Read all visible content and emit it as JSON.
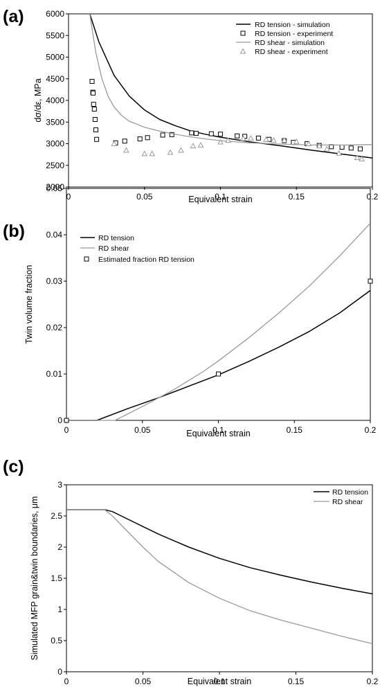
{
  "chart_data": [
    {
      "type": "line",
      "panel_label": "(a)",
      "xlabel": "Equivalent strain",
      "ylabel": "dσ/dε, MPa",
      "xlim": [
        0,
        0.2
      ],
      "ylim": [
        2000,
        6000
      ],
      "xticks": [
        "0",
        "0.05",
        "0.1",
        "0.15",
        "0.2"
      ],
      "yticks": [
        "2000",
        "2500",
        "3000",
        "3500",
        "4000",
        "4500",
        "5000",
        "5500",
        "6000"
      ],
      "grid": false,
      "legend_position": "top-right",
      "series": [
        {
          "name": "RD tension - simulation",
          "style": "line",
          "color": "#000000",
          "x": [
            0.014,
            0.02,
            0.03,
            0.04,
            0.05,
            0.06,
            0.07,
            0.08,
            0.09,
            0.1,
            0.12,
            0.14,
            0.16,
            0.18,
            0.2
          ],
          "y": [
            6000,
            5350,
            4580,
            4100,
            3780,
            3560,
            3420,
            3300,
            3220,
            3150,
            3040,
            2950,
            2850,
            2760,
            2670
          ]
        },
        {
          "name": "RD tension - experiment",
          "style": "square",
          "color": "#000000",
          "x": [
            0.0155,
            0.016,
            0.0162,
            0.0165,
            0.017,
            0.0175,
            0.018,
            0.0185,
            0.031,
            0.037,
            0.047,
            0.052,
            0.062,
            0.068,
            0.081,
            0.084,
            0.094,
            0.1,
            0.111,
            0.116,
            0.125,
            0.132,
            0.142,
            0.148,
            0.157,
            0.165,
            0.173,
            0.18,
            0.186,
            0.192
          ],
          "y": [
            4440,
            4190,
            4170,
            3910,
            3800,
            3560,
            3320,
            3100,
            3020,
            3060,
            3110,
            3140,
            3200,
            3210,
            3250,
            3240,
            3230,
            3220,
            3180,
            3170,
            3130,
            3100,
            3070,
            3030,
            3000,
            2960,
            2930,
            2920,
            2900,
            2880
          ]
        },
        {
          "name": "RD shear - simulation",
          "style": "line",
          "color": "#999999",
          "x": [
            0.014,
            0.018,
            0.022,
            0.026,
            0.03,
            0.035,
            0.04,
            0.05,
            0.06,
            0.07,
            0.08,
            0.09,
            0.1,
            0.12,
            0.14,
            0.16,
            0.18,
            0.2
          ],
          "y": [
            6000,
            5100,
            4500,
            4100,
            3850,
            3650,
            3520,
            3380,
            3290,
            3220,
            3160,
            3110,
            3070,
            3020,
            2990,
            2970,
            2970,
            2980
          ]
        },
        {
          "name": "RD shear - experiment",
          "style": "triangle",
          "color": "#999999",
          "x": [
            0.03,
            0.038,
            0.05,
            0.055,
            0.067,
            0.074,
            0.082,
            0.087,
            0.1,
            0.105,
            0.115,
            0.12,
            0.13,
            0.135,
            0.142,
            0.15,
            0.158,
            0.165,
            0.17,
            0.178,
            0.19,
            0.193
          ],
          "y": [
            3000,
            2850,
            2770,
            2770,
            2800,
            2850,
            2950,
            2970,
            3040,
            3080,
            3120,
            3130,
            3100,
            3080,
            3080,
            3050,
            3000,
            2950,
            2880,
            2780,
            2680,
            2650
          ]
        }
      ]
    },
    {
      "type": "line",
      "panel_label": "(b)",
      "xlabel": "Equivalent strain",
      "ylabel": "Twin volume fraction",
      "xlim": [
        0,
        0.2
      ],
      "ylim": [
        0,
        0.05
      ],
      "xticks": [
        "0",
        "0.05",
        "0.1",
        "0.15",
        "0.2"
      ],
      "yticks": [
        "0",
        "0.01",
        "0.02",
        "0.03",
        "0.04",
        "0.05"
      ],
      "grid": false,
      "legend_position": "top-left",
      "series": [
        {
          "name": "RD tension",
          "style": "line",
          "color": "#000000",
          "x": [
            0,
            0.02,
            0.04,
            0.06,
            0.08,
            0.1,
            0.12,
            0.14,
            0.16,
            0.18,
            0.2
          ],
          "y": [
            0,
            0,
            0.0025,
            0.0048,
            0.0073,
            0.0098,
            0.0127,
            0.0158,
            0.0192,
            0.0232,
            0.028
          ]
        },
        {
          "name": "RD shear",
          "style": "line",
          "color": "#999999",
          "x": [
            0,
            0.032,
            0.05,
            0.07,
            0.09,
            0.1,
            0.12,
            0.14,
            0.16,
            0.18,
            0.2
          ],
          "y": [
            0,
            0,
            0.003,
            0.0065,
            0.0105,
            0.0128,
            0.0178,
            0.0232,
            0.029,
            0.0355,
            0.0425
          ]
        },
        {
          "name": "Estimated fraction RD tension",
          "style": "square",
          "color": "#000000",
          "x": [
            0,
            0.1,
            0.2
          ],
          "y": [
            0,
            0.01,
            0.03
          ]
        }
      ]
    },
    {
      "type": "line",
      "panel_label": "(c)",
      "xlabel": "Equivalent strain",
      "ylabel": "Simulated MFP grain&twin boundaries, μm",
      "xlim": [
        0,
        0.2
      ],
      "ylim": [
        0,
        3
      ],
      "xticks": [
        "0",
        "0.05",
        "0.1",
        "0.15",
        "0.2"
      ],
      "yticks": [
        "0",
        "0.5",
        "1",
        "1.5",
        "2",
        "2.5",
        "3"
      ],
      "grid": false,
      "legend_position": "top-right",
      "series": [
        {
          "name": "RD tension",
          "style": "line",
          "color": "#000000",
          "x": [
            0,
            0.025,
            0.03,
            0.04,
            0.05,
            0.06,
            0.08,
            0.1,
            0.12,
            0.14,
            0.16,
            0.18,
            0.2
          ],
          "y": [
            2.6,
            2.6,
            2.57,
            2.45,
            2.33,
            2.21,
            2.0,
            1.82,
            1.67,
            1.55,
            1.44,
            1.34,
            1.25
          ]
        },
        {
          "name": "RD shear",
          "style": "line",
          "color": "#999999",
          "x": [
            0,
            0.025,
            0.03,
            0.04,
            0.05,
            0.06,
            0.08,
            0.1,
            0.12,
            0.14,
            0.16,
            0.18,
            0.2
          ],
          "y": [
            2.6,
            2.6,
            2.5,
            2.25,
            2.0,
            1.77,
            1.43,
            1.18,
            0.98,
            0.83,
            0.7,
            0.57,
            0.45
          ]
        }
      ]
    }
  ]
}
